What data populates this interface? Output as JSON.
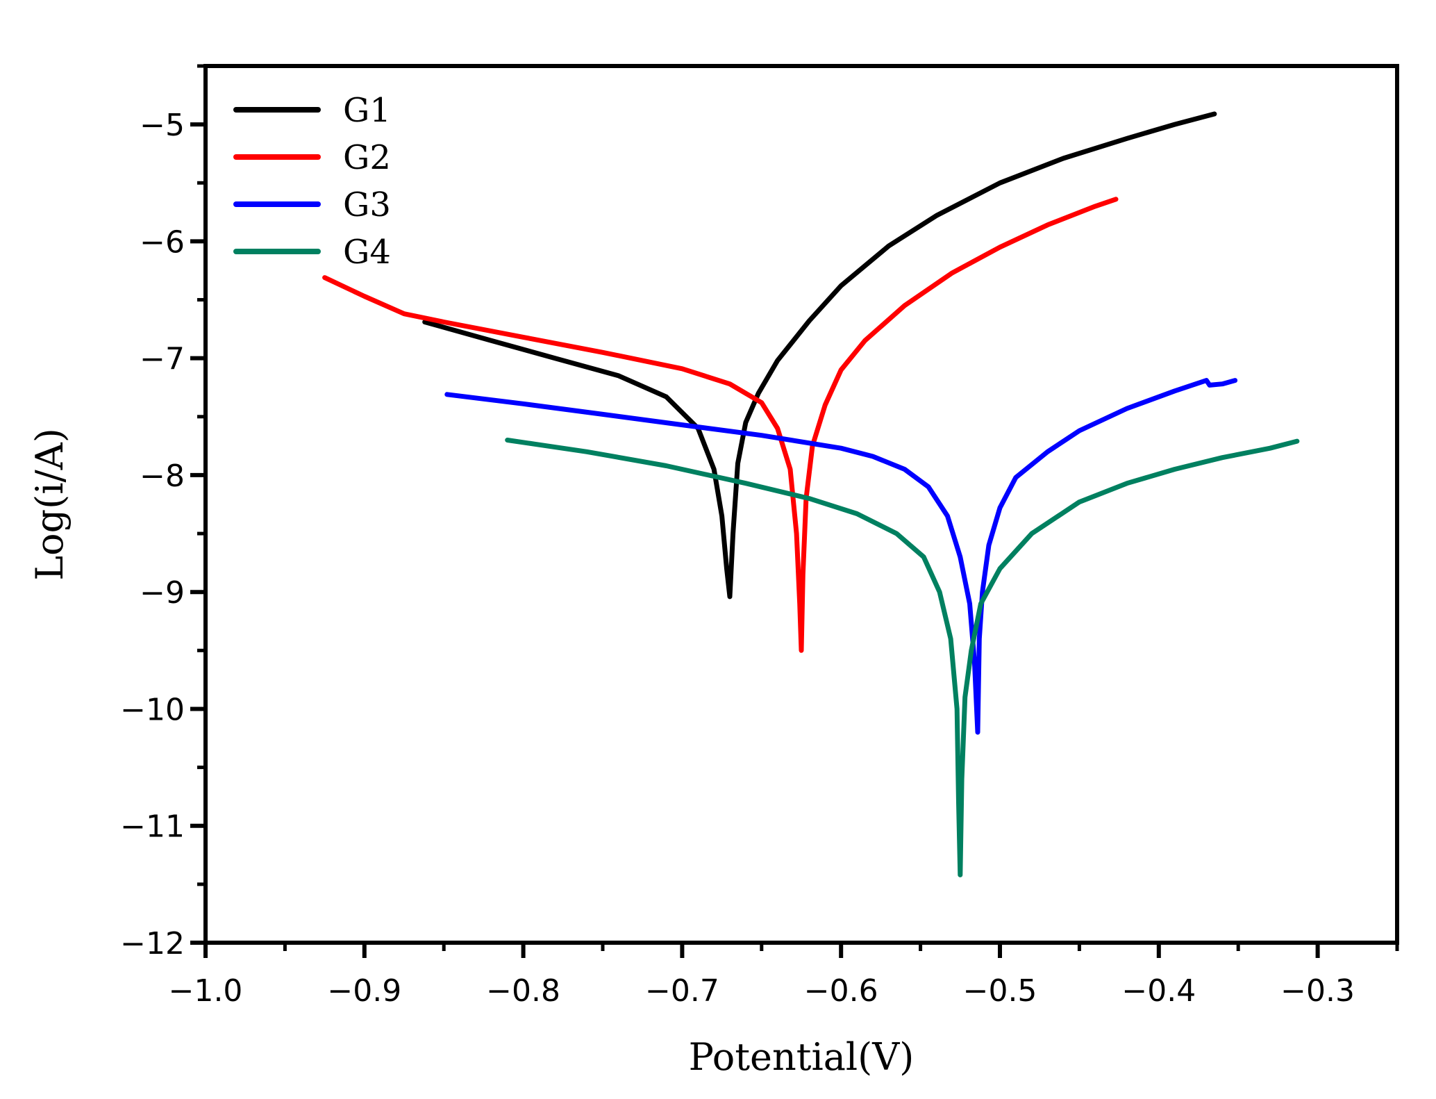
{
  "chart_data": {
    "type": "line",
    "title": "",
    "xlabel": "Potential(V)",
    "ylabel": "Log(i/A)",
    "xlim": [
      -1.0,
      -0.25
    ],
    "ylim": [
      -12,
      -4.5
    ],
    "xticks": [
      -1.0,
      -0.9,
      -0.8,
      -0.7,
      -0.6,
      -0.5,
      -0.4,
      -0.3
    ],
    "xtick_labels": [
      "−1.0",
      "−0.9",
      "−0.8",
      "−0.7",
      "−0.6",
      "−0.5",
      "−0.4",
      "−0.3"
    ],
    "yticks": [
      -12,
      -11,
      -10,
      -9,
      -8,
      -7,
      -6,
      -5
    ],
    "ytick_labels": [
      "−12",
      "−11",
      "−10",
      "−9",
      "−8",
      "−7",
      "−6",
      "−5"
    ],
    "grid": false,
    "legend_position": "top-left",
    "series": [
      {
        "name": "G1",
        "color": "#000000",
        "points": [
          [
            -0.862,
            -6.69
          ],
          [
            -0.82,
            -6.85
          ],
          [
            -0.78,
            -7.0
          ],
          [
            -0.74,
            -7.15
          ],
          [
            -0.71,
            -7.33
          ],
          [
            -0.69,
            -7.6
          ],
          [
            -0.68,
            -7.95
          ],
          [
            -0.675,
            -8.35
          ],
          [
            -0.672,
            -8.8
          ],
          [
            -0.67,
            -9.04
          ],
          [
            -0.668,
            -8.5
          ],
          [
            -0.665,
            -7.9
          ],
          [
            -0.66,
            -7.55
          ],
          [
            -0.652,
            -7.3
          ],
          [
            -0.64,
            -7.02
          ],
          [
            -0.62,
            -6.68
          ],
          [
            -0.6,
            -6.38
          ],
          [
            -0.57,
            -6.04
          ],
          [
            -0.54,
            -5.78
          ],
          [
            -0.5,
            -5.5
          ],
          [
            -0.46,
            -5.29
          ],
          [
            -0.42,
            -5.12
          ],
          [
            -0.39,
            -5.0
          ],
          [
            -0.365,
            -4.91
          ]
        ]
      },
      {
        "name": "G2",
        "color": "#ff0000",
        "points": [
          [
            -0.925,
            -6.31
          ],
          [
            -0.9,
            -6.47
          ],
          [
            -0.875,
            -6.62
          ],
          [
            -0.85,
            -6.69
          ],
          [
            -0.8,
            -6.82
          ],
          [
            -0.75,
            -6.95
          ],
          [
            -0.7,
            -7.09
          ],
          [
            -0.67,
            -7.22
          ],
          [
            -0.65,
            -7.38
          ],
          [
            -0.64,
            -7.6
          ],
          [
            -0.632,
            -7.95
          ],
          [
            -0.628,
            -8.5
          ],
          [
            -0.626,
            -9.1
          ],
          [
            -0.625,
            -9.5
          ],
          [
            -0.624,
            -8.85
          ],
          [
            -0.622,
            -8.2
          ],
          [
            -0.618,
            -7.75
          ],
          [
            -0.61,
            -7.4
          ],
          [
            -0.6,
            -7.1
          ],
          [
            -0.585,
            -6.85
          ],
          [
            -0.56,
            -6.55
          ],
          [
            -0.53,
            -6.27
          ],
          [
            -0.5,
            -6.05
          ],
          [
            -0.47,
            -5.86
          ],
          [
            -0.44,
            -5.7
          ],
          [
            -0.427,
            -5.64
          ]
        ]
      },
      {
        "name": "G3",
        "color": "#0000ff",
        "points": [
          [
            -0.848,
            -7.31
          ],
          [
            -0.8,
            -7.39
          ],
          [
            -0.75,
            -7.48
          ],
          [
            -0.7,
            -7.57
          ],
          [
            -0.65,
            -7.66
          ],
          [
            -0.6,
            -7.77
          ],
          [
            -0.58,
            -7.84
          ],
          [
            -0.56,
            -7.95
          ],
          [
            -0.545,
            -8.1
          ],
          [
            -0.533,
            -8.35
          ],
          [
            -0.525,
            -8.7
          ],
          [
            -0.519,
            -9.1
          ],
          [
            -0.516,
            -9.6
          ],
          [
            -0.514,
            -10.2
          ],
          [
            -0.513,
            -9.4
          ],
          [
            -0.511,
            -9.0
          ],
          [
            -0.507,
            -8.6
          ],
          [
            -0.5,
            -8.28
          ],
          [
            -0.49,
            -8.02
          ],
          [
            -0.47,
            -7.8
          ],
          [
            -0.45,
            -7.62
          ],
          [
            -0.42,
            -7.43
          ],
          [
            -0.39,
            -7.28
          ],
          [
            -0.37,
            -7.19
          ],
          [
            -0.368,
            -7.23
          ],
          [
            -0.36,
            -7.22
          ],
          [
            -0.352,
            -7.19
          ]
        ]
      },
      {
        "name": "G4",
        "color": "#008060",
        "points": [
          [
            -0.81,
            -7.7
          ],
          [
            -0.76,
            -7.8
          ],
          [
            -0.71,
            -7.92
          ],
          [
            -0.66,
            -8.07
          ],
          [
            -0.62,
            -8.2
          ],
          [
            -0.59,
            -8.33
          ],
          [
            -0.565,
            -8.5
          ],
          [
            -0.548,
            -8.7
          ],
          [
            -0.538,
            -9.0
          ],
          [
            -0.531,
            -9.4
          ],
          [
            -0.527,
            -10.0
          ],
          [
            -0.526,
            -10.8
          ],
          [
            -0.525,
            -11.42
          ],
          [
            -0.524,
            -10.6
          ],
          [
            -0.522,
            -9.9
          ],
          [
            -0.518,
            -9.5
          ],
          [
            -0.512,
            -9.1
          ],
          [
            -0.5,
            -8.8
          ],
          [
            -0.48,
            -8.5
          ],
          [
            -0.45,
            -8.23
          ],
          [
            -0.42,
            -8.07
          ],
          [
            -0.39,
            -7.95
          ],
          [
            -0.36,
            -7.85
          ],
          [
            -0.33,
            -7.77
          ],
          [
            -0.313,
            -7.71
          ]
        ]
      }
    ]
  }
}
